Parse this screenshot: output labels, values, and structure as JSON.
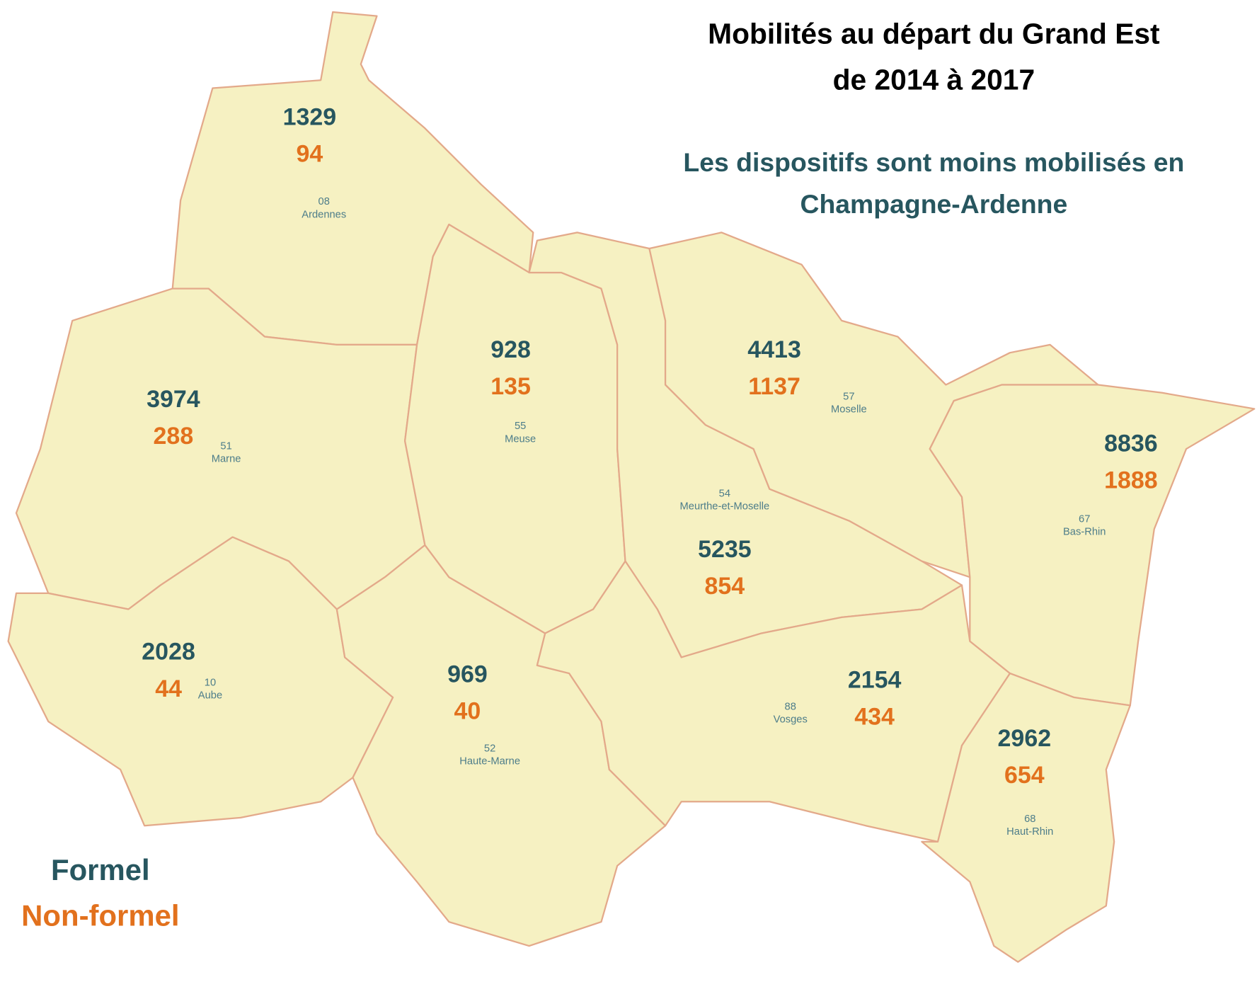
{
  "title": [
    "Mobilités au départ du Grand Est",
    "de 2014 à 2017"
  ],
  "subtitle": [
    "Les dispositifs sont moins mobilisés en",
    "Champagne-Ardenne"
  ],
  "legend": {
    "formel": "Formel",
    "non_formel": "Non-formel"
  },
  "departments": [
    {
      "code": "08",
      "name": "Ardennes",
      "formel": 1329,
      "non_formel": 94
    },
    {
      "code": "51",
      "name": "Marne",
      "formel": 3974,
      "non_formel": 288
    },
    {
      "code": "10",
      "name": "Aube",
      "formel": 2028,
      "non_formel": 44
    },
    {
      "code": "52",
      "name": "Haute-Marne",
      "formel": 969,
      "non_formel": 40
    },
    {
      "code": "55",
      "name": "Meuse",
      "formel": 928,
      "non_formel": 135
    },
    {
      "code": "54",
      "name": "Meurthe-et-Moselle",
      "formel": 5235,
      "non_formel": 854
    },
    {
      "code": "57",
      "name": "Moselle",
      "formel": 4413,
      "non_formel": 1137
    },
    {
      "code": "67",
      "name": "Bas-Rhin",
      "formel": 8836,
      "non_formel": 1888
    },
    {
      "code": "88",
      "name": "Vosges",
      "formel": 2154,
      "non_formel": 434
    },
    {
      "code": "68",
      "name": "Haut-Rhin",
      "formel": 2962,
      "non_formel": 654
    }
  ]
}
